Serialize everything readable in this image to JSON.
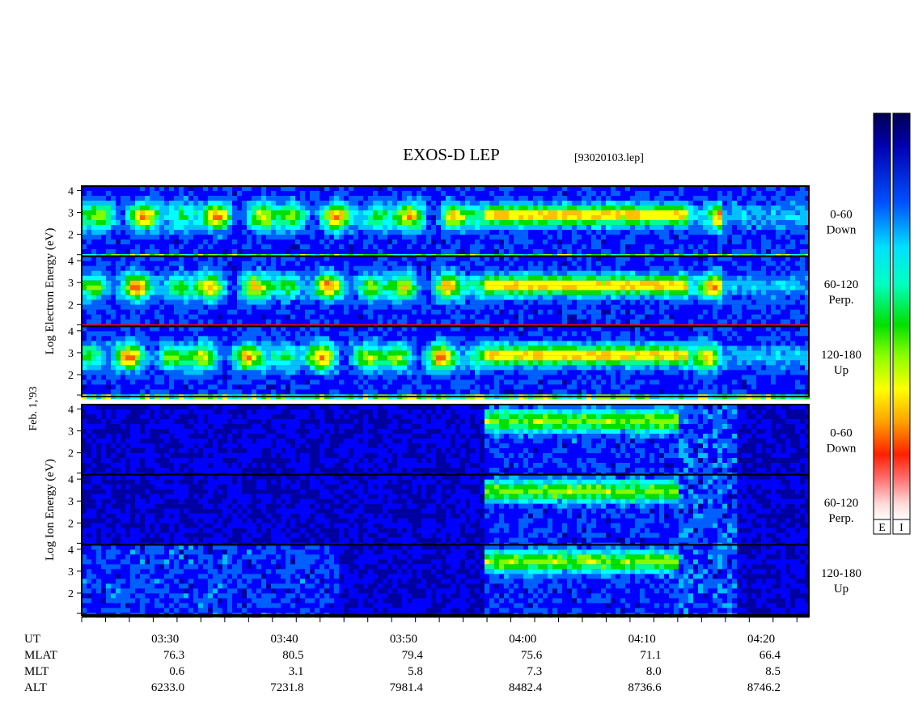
{
  "title": "EXOS-D LEP",
  "file_id": "[93020103.lep]",
  "date_label": "Feb. 1,'93",
  "colors": {
    "frame": "#000000",
    "background": "#ffffff",
    "colormap": [
      "#000050",
      "#0000a0",
      "#0000ff",
      "#0060ff",
      "#00c0ff",
      "#00ffff",
      "#00ff90",
      "#00e000",
      "#80ff00",
      "#ffff00",
      "#ffc000",
      "#ff6000",
      "#ff0000",
      "#ff8080",
      "#ffe0e0",
      "#ffffff"
    ]
  },
  "colorbars": [
    {
      "label": "E"
    },
    {
      "label": "I"
    }
  ],
  "chart_data": {
    "type": "heatmap",
    "x_axis": {
      "range": [
        "03:23",
        "04:24"
      ],
      "major_ticks": [
        "03:30",
        "03:40",
        "03:50",
        "04:00",
        "04:10",
        "04:20"
      ]
    },
    "groups": [
      {
        "species": "Electron",
        "ylabel_words": [
          "Log",
          "Electron",
          "Energy",
          "(eV)"
        ],
        "panels": [
          {
            "pitch_angle": "0-60",
            "direction": "Down",
            "yticks": [
              "4",
              "3",
              "2"
            ],
            "ylim": [
              1,
              4.2
            ]
          },
          {
            "pitch_angle": "60-120",
            "direction": "Perp.",
            "yticks": [
              "4",
              "3",
              "2"
            ],
            "ylim": [
              1,
              4.2
            ]
          },
          {
            "pitch_angle": "120-180",
            "direction": "Up",
            "yticks": [
              "4",
              "3",
              "2"
            ],
            "ylim": [
              1,
              4.2
            ]
          }
        ]
      },
      {
        "species": "Ion",
        "ylabel_words": [
          "Log",
          "Ion",
          "Energy",
          "(eV)"
        ],
        "panels": [
          {
            "pitch_angle": "0-60",
            "direction": "Down",
            "yticks": [
              "4",
              "3",
              "2"
            ],
            "ylim": [
              1,
              4.2
            ]
          },
          {
            "pitch_angle": "60-120",
            "direction": "Perp.",
            "yticks": [
              "4",
              "3",
              "2"
            ],
            "ylim": [
              1,
              4.2
            ]
          },
          {
            "pitch_angle": "120-180",
            "direction": "Up",
            "yticks": [
              "4",
              "3",
              "2"
            ],
            "ylim": [
              1,
              4.2
            ]
          }
        ]
      }
    ],
    "ephemeris": [
      {
        "label": "UT",
        "values": [
          "03:30",
          "03:40",
          "03:50",
          "04:00",
          "04:10",
          "04:20"
        ]
      },
      {
        "label": "MLAT",
        "values": [
          "76.3",
          "80.5",
          "79.4",
          "75.6",
          "71.1",
          "66.4"
        ]
      },
      {
        "label": "MLT",
        "values": [
          "0.6",
          "3.1",
          "5.8",
          "7.3",
          "8.0",
          "8.5"
        ]
      },
      {
        "label": "ALT",
        "values": [
          "6233.0",
          "7231.8",
          "7981.4",
          "8482.4",
          "8736.6",
          "8746.2"
        ]
      }
    ]
  }
}
